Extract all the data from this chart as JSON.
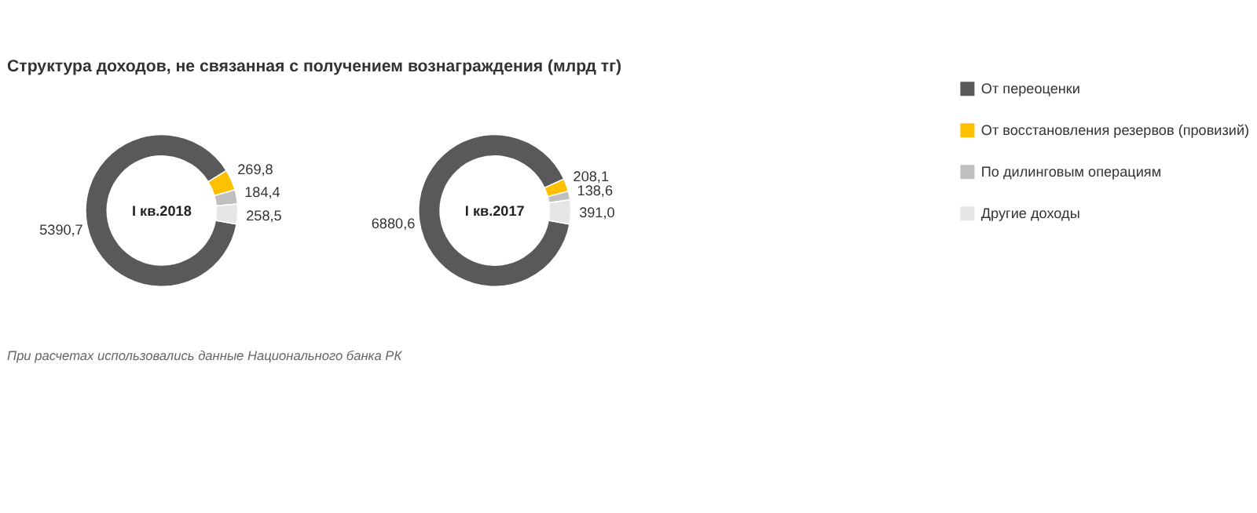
{
  "chart_data": [
    {
      "type": "donut",
      "title": "Структура доходов, не связанная  с получением вознаграждения (млрд тг)",
      "subtitle": "I кв.2018",
      "categories": [
        "От переоценки",
        "От восстановления резервов (провизий)",
        "По дилинговым операциям",
        "Другие доходы"
      ],
      "values": [
        5390.7,
        269.8,
        184.4,
        258.5
      ],
      "value_labels": [
        "5390,7",
        "269,8",
        "184,4",
        "258,5"
      ],
      "colors": [
        "#595959",
        "#ffc000",
        "#bfbfbf",
        "#e6e6e6"
      ],
      "legend": "right"
    },
    {
      "type": "donut",
      "subtitle": "I кв.2017",
      "values": [
        6880.6,
        208.1,
        138.6,
        391.0
      ],
      "value_labels": [
        "6880,6",
        "208,1",
        "138,6",
        "391,0"
      ],
      "colors": [
        "#595959",
        "#ffc000",
        "#bfbfbf",
        "#e6e6e6"
      ],
      "annotations": [
        "При расчетах использовались данные Национального  банка РК"
      ]
    }
  ]
}
